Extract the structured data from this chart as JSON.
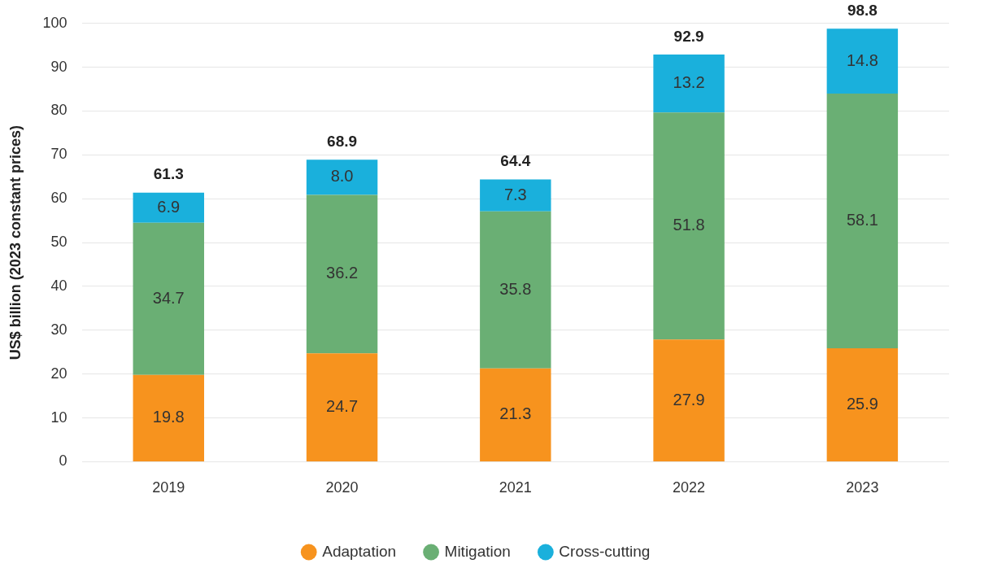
{
  "chart_data": {
    "type": "bar",
    "stacked": true,
    "ylabel": "US$ billion (2023 constant prices)",
    "categories": [
      "2019",
      "2020",
      "2021",
      "2022",
      "2023"
    ],
    "series": [
      {
        "name": "Adaptation",
        "color": "#f7931e",
        "values": [
          19.8,
          24.7,
          21.3,
          27.9,
          25.9
        ],
        "value_labels": [
          "19.8",
          "24.7",
          "21.3",
          "27.9",
          "25.9"
        ]
      },
      {
        "name": "Mitigation",
        "color": "#6aaf74",
        "values": [
          34.7,
          36.2,
          35.8,
          51.8,
          58.1
        ],
        "value_labels": [
          "34.7",
          "36.2",
          "35.8",
          "51.8",
          "58.1"
        ]
      },
      {
        "name": "Cross-cutting",
        "color": "#1ab0dc",
        "values": [
          6.9,
          8.0,
          7.3,
          13.2,
          14.8
        ],
        "value_labels": [
          "6.9",
          "8.0",
          "7.3",
          "13.2",
          "14.8"
        ]
      }
    ],
    "totals": [
      "61.3",
      "68.9",
      "64.4",
      "92.9",
      "98.8"
    ],
    "ylim": [
      0,
      100
    ],
    "yticks": [
      0,
      10,
      20,
      30,
      40,
      50,
      60,
      70,
      80,
      90,
      100
    ],
    "grid": "y",
    "legend": "bottom"
  }
}
